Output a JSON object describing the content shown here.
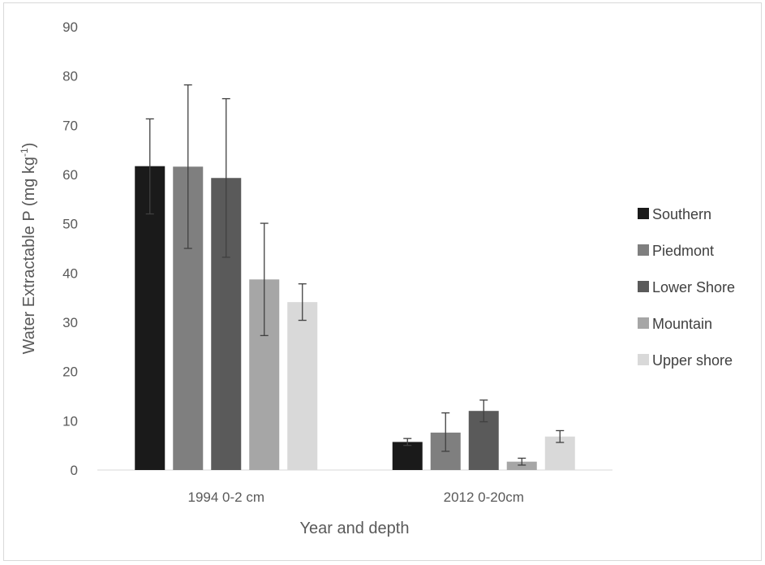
{
  "chart_data": {
    "type": "bar",
    "title": "",
    "xlabel": "Year and depth",
    "ylabel": "Water Extractable P (mg kg",
    "ylabel_sup": "-1",
    "ylabel_close": ")",
    "ylim": [
      0,
      90
    ],
    "yticks": [
      "0",
      "10",
      "20",
      "30",
      "40",
      "50",
      "60",
      "70",
      "80",
      "90"
    ],
    "categories": [
      "1994 0-2 cm",
      "2012 0-20cm"
    ],
    "legend_position": "right",
    "grid": false,
    "series": [
      {
        "name": "Southern",
        "color": "#1a1a1a",
        "values": [
          61.7,
          5.7
        ],
        "err_low": [
          52.0,
          5.0
        ],
        "err_high": [
          71.3,
          6.4
        ]
      },
      {
        "name": "Piedmont",
        "color": "#7f7f7f",
        "values": [
          61.6,
          7.6
        ],
        "err_low": [
          45.0,
          3.8
        ],
        "err_high": [
          78.2,
          11.6
        ]
      },
      {
        "name": "Lower Shore",
        "color": "#5a5a5a",
        "values": [
          59.3,
          12.0
        ],
        "err_low": [
          43.2,
          9.8
        ],
        "err_high": [
          75.4,
          14.2
        ]
      },
      {
        "name": "Mountain",
        "color": "#a6a6a6",
        "values": [
          38.7,
          1.7
        ],
        "err_low": [
          27.3,
          1.0
        ],
        "err_high": [
          50.1,
          2.4
        ]
      },
      {
        "name": "Upper shore",
        "color": "#d9d9d9",
        "values": [
          34.1,
          6.8
        ],
        "err_low": [
          30.4,
          5.6
        ],
        "err_high": [
          37.8,
          8.0
        ]
      }
    ]
  }
}
